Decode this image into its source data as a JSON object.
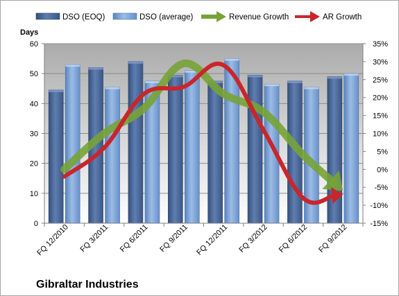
{
  "chart_data": {
    "type": "bar",
    "categories": [
      "FQ 12/2010",
      "FQ 3/2011",
      "FQ 6/2011",
      "FQ 9/2011",
      "FQ 12/2011",
      "FQ 3/2012",
      "FQ 6/2012",
      "FQ 9/2012"
    ],
    "series": [
      {
        "name": "DSO (EOQ)",
        "type": "bar",
        "axis": "left",
        "color": "#4f6d9e",
        "values": [
          44.5,
          52,
          54,
          49.5,
          47.5,
          49.5,
          47.5,
          49
        ]
      },
      {
        "name": "DSO (average)",
        "type": "bar",
        "axis": "left",
        "color": "#7ca2d6",
        "values": [
          53,
          45.5,
          47.5,
          51,
          55,
          46.5,
          45.5,
          50
        ]
      },
      {
        "name": "Revenue Growth",
        "type": "line",
        "axis": "right",
        "color": "#77a336",
        "values": [
          0,
          10,
          17,
          29.5,
          21,
          16,
          4,
          -6
        ]
      },
      {
        "name": "AR Growth",
        "type": "line",
        "axis": "right",
        "color": "#c8262b",
        "values": [
          -2,
          6,
          21,
          23,
          29,
          11,
          -8,
          -7
        ]
      }
    ],
    "ylabel": "Days",
    "xlabel": "",
    "ylim": [
      0,
      60
    ],
    "yticks": [
      "0",
      "10",
      "20",
      "30",
      "40",
      "50",
      "60"
    ],
    "y2lim": [
      -15,
      35
    ],
    "y2ticks": [
      "-15%",
      "-10%",
      "-5%",
      "0%",
      "5%",
      "10%",
      "15%",
      "20%",
      "25%",
      "30%",
      "35%"
    ],
    "title": "",
    "company": "Gibraltar Industries",
    "grid": true,
    "legend": "top"
  }
}
